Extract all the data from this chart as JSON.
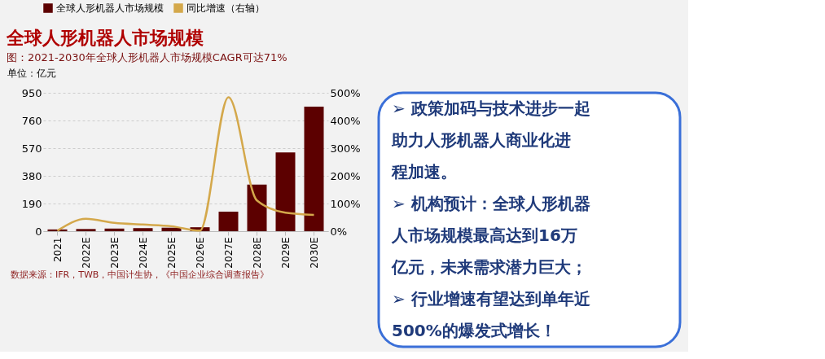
{
  "chart_data": [
    {
      "type": "bar",
      "title": "全球人形机器人市场规模",
      "subtitle": "图：2021-2030年全球人形机器人市场规模CAGR可达71%",
      "ylabel": "单位：亿元",
      "categories": [
        "2021",
        "2022E",
        "2023E",
        "2024E",
        "2025E",
        "2026E",
        "2027E",
        "2028E",
        "2029E",
        "2030E"
      ],
      "series": [
        {
          "name": "全球人形机器人市场规模",
          "color": "#5c0000",
          "values": [
            12,
            15,
            18,
            21,
            24,
            27,
            134,
            320,
            541,
            855
          ]
        },
        {
          "name": "同比增速（右轴）",
          "type": "line",
          "axis": "y2",
          "color": "#d4a84b",
          "values": [
            2,
            45,
            30,
            24,
            18,
            2,
            484,
            111,
            67,
            59
          ]
        }
      ],
      "ylim": [
        0,
        950
      ],
      "yticks": [
        0,
        190,
        380,
        570,
        760,
        950
      ],
      "y2lim": [
        0,
        500
      ],
      "y2ticks": [
        {
          "value": 0,
          "label": "0%"
        },
        {
          "value": 100,
          "label": "100%"
        },
        {
          "value": 200,
          "label": "200%"
        },
        {
          "value": 300,
          "label": "300%"
        },
        {
          "value": 400,
          "label": "400%"
        },
        {
          "value": 500,
          "label": "500%"
        }
      ],
      "grid": "y",
      "legend": "top",
      "marker": "none",
      "annotations": [
        "数据来源：IFR，TWB，中国计生协，《中国企业综合调查报告》"
      ]
    },
    {
      "type": "other",
      "annotations": [
        "➢ 政策加码与技术进步一起",
        "助力人形机器人商业化进",
        "程加速。",
        "➢ 机构预计：全球人形机器",
        "人市场规模最高达到16万",
        "亿元，未来需求潜力巨大；",
        "➢ 行业增速有望达到单年近",
        "500%的爆发式增长！"
      ]
    }
  ]
}
